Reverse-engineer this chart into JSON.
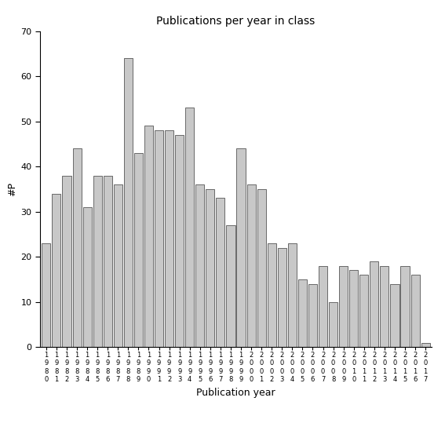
{
  "title": "Publications per year in class",
  "xlabel": "Publication year",
  "ylabel": "#P",
  "ylim": [
    0,
    70
  ],
  "yticks": [
    0,
    10,
    20,
    30,
    40,
    50,
    60,
    70
  ],
  "bar_color": "#c8c8c8",
  "bar_edgecolor": "#555555",
  "years": [
    1980,
    1981,
    1982,
    1983,
    1984,
    1985,
    1986,
    1987,
    1988,
    1989,
    1990,
    1991,
    1992,
    1993,
    1994,
    1995,
    1996,
    1997,
    1998,
    1999,
    2000,
    2001,
    2002,
    2003,
    2004,
    2005,
    2006,
    2007,
    2008,
    2009,
    2010,
    2011,
    2012,
    2013,
    2014,
    2015,
    2016,
    2017
  ],
  "values": [
    23,
    34,
    38,
    44,
    31,
    38,
    38,
    36,
    64,
    43,
    49,
    48,
    48,
    47,
    53,
    36,
    35,
    33,
    27,
    44,
    36,
    35,
    23,
    22,
    23,
    15,
    14,
    18,
    10,
    18,
    17,
    16,
    19,
    18,
    14,
    18,
    16,
    1
  ],
  "background_color": "#ffffff",
  "title_fontsize": 10,
  "axis_fontsize": 9,
  "tick_fontsize": 8,
  "label_fontsize": 9
}
